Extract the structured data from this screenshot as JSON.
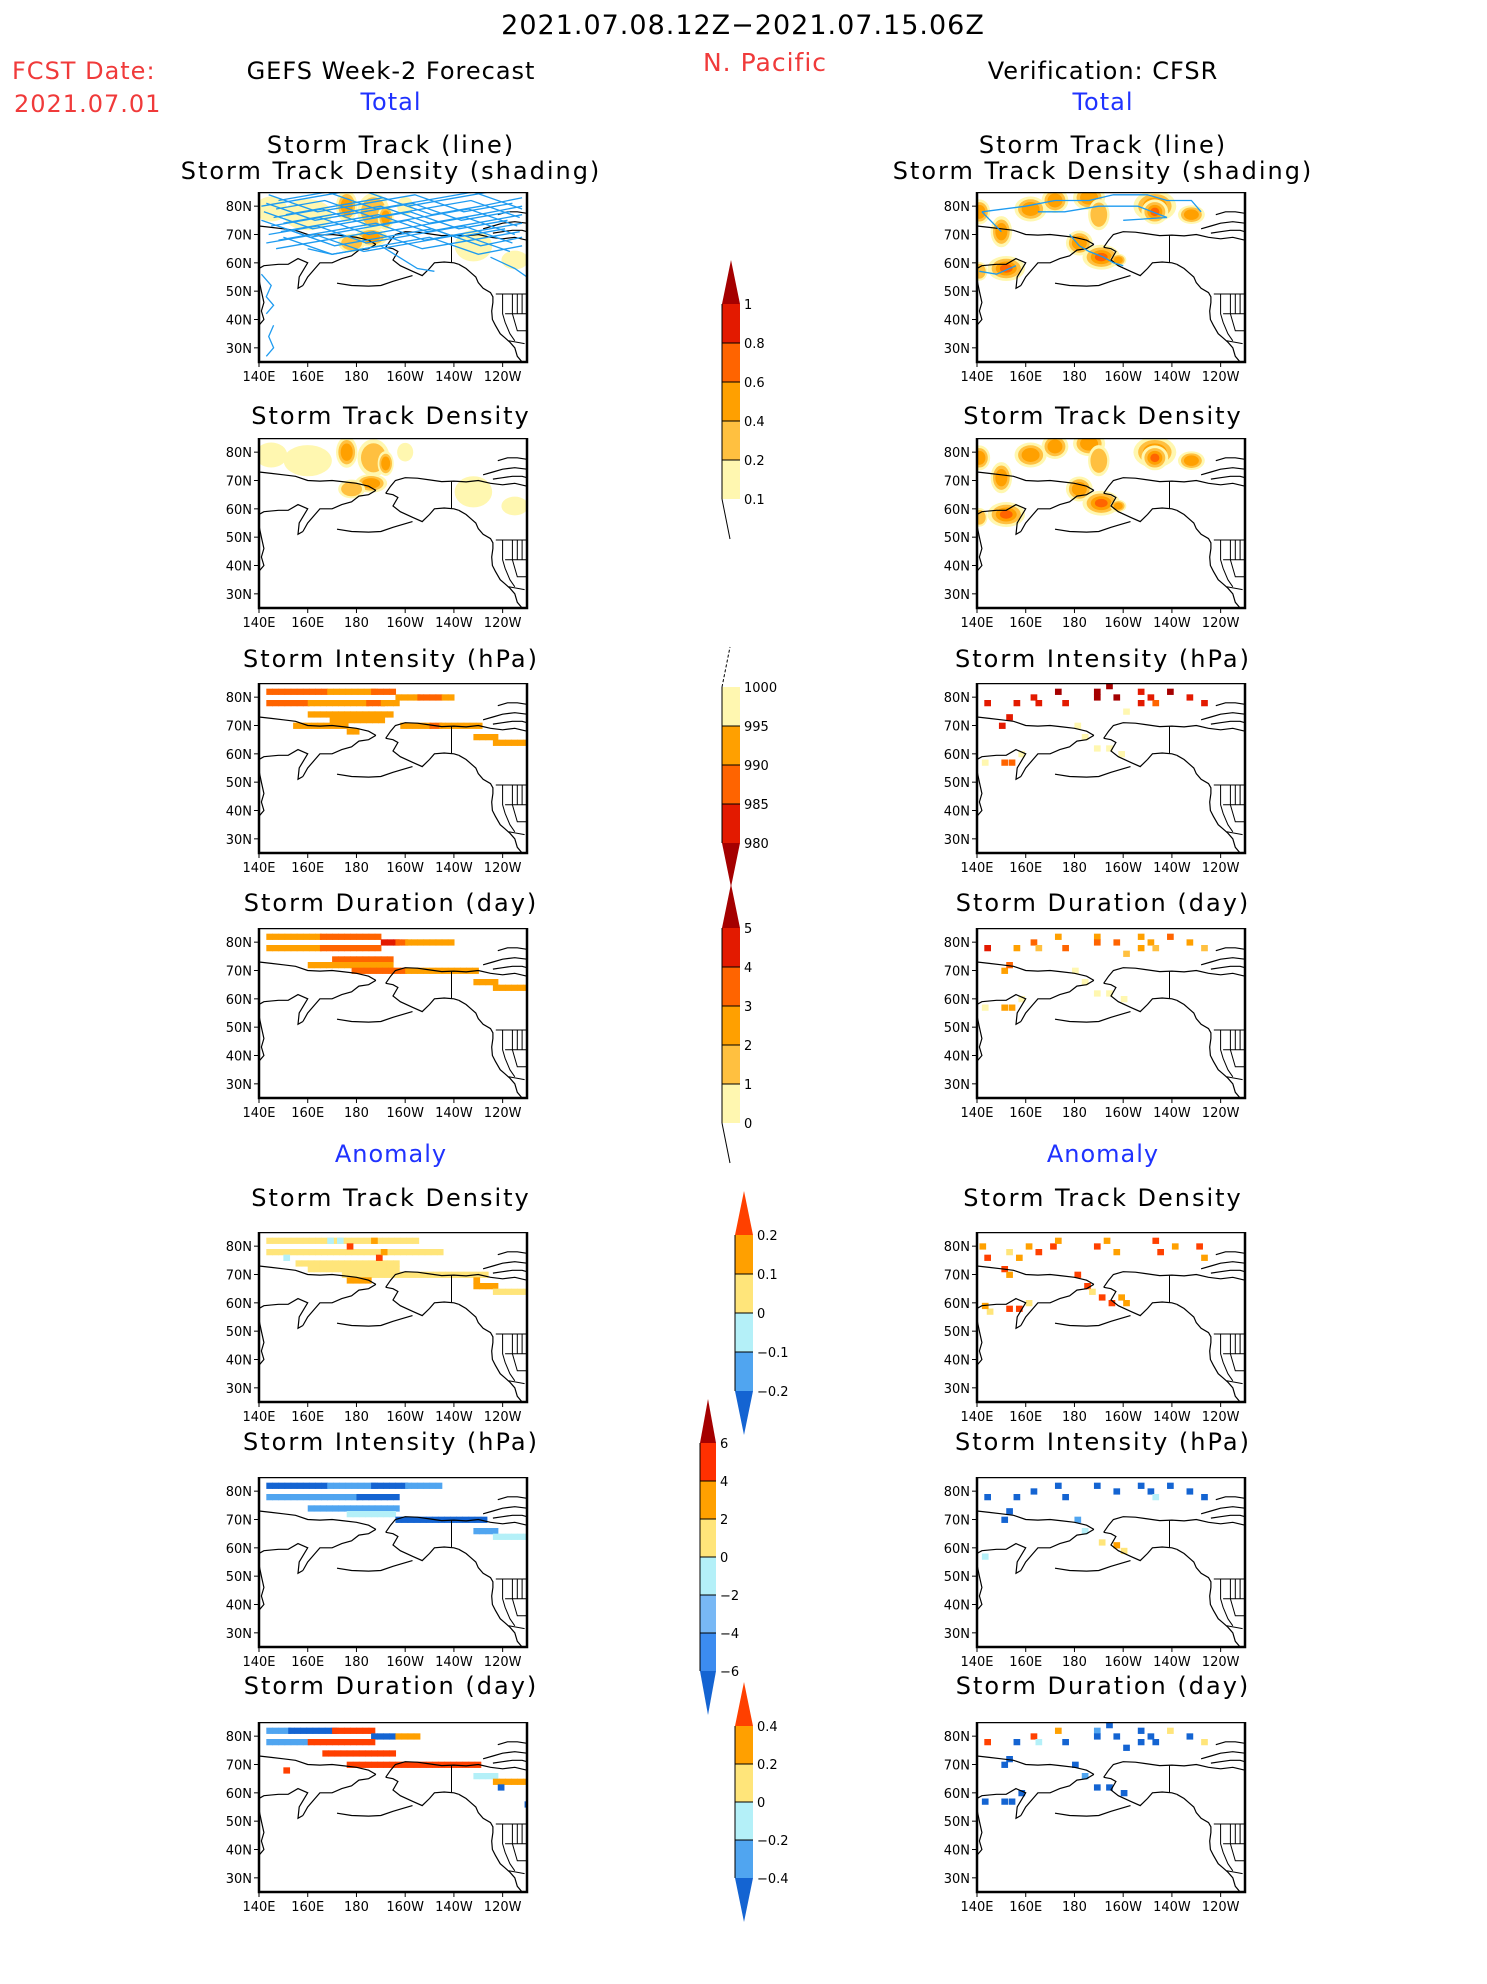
{
  "header": {
    "date_range": "2021.07.08.12Z−2021.07.15.06Z",
    "region": "N. Pacific",
    "fcst_label": "FCST Date:",
    "fcst_date": "2021.07.01",
    "left_title": "GEFS Week-2 Forecast",
    "right_title": "Verification: CFSR",
    "total_label": "Total",
    "anomaly_label": "Anomaly"
  },
  "colors": {
    "title_red": "#f03a3a",
    "section_blue": "#1f32ff",
    "track_line": "#1e9bf0"
  },
  "axes": {
    "lon_ticks": [
      "140E",
      "160E",
      "180",
      "160W",
      "140W",
      "120W"
    ],
    "lat_ticks": [
      "80N",
      "70N",
      "60N",
      "50N",
      "40N",
      "30N"
    ]
  },
  "panels": {
    "titles": {
      "track_line": "Storm Track (line)",
      "track_shading": "Storm Track Density (shading)",
      "density": "Storm Track Density",
      "intensity": "Storm Intensity (hPa)",
      "duration": "Storm Duration (day)"
    }
  },
  "colorbars": {
    "density_total": {
      "labels": [
        "1",
        "0.8",
        "0.6",
        "0.4",
        "0.2",
        "0.1"
      ],
      "colors": [
        "#a50000",
        "#e31a00",
        "#ff6400",
        "#ffa000",
        "#ffc040",
        "#fff7b0"
      ],
      "extend": "max"
    },
    "intensity_total": {
      "labels": [
        "1000",
        "995",
        "990",
        "985",
        "980"
      ],
      "colors": [
        "#fff7b0",
        "#ffa000",
        "#ff6400",
        "#e31a00",
        "#a50000"
      ],
      "extend": "min"
    },
    "duration_total": {
      "labels": [
        "5",
        "4",
        "3",
        "2",
        "1",
        "0"
      ],
      "colors": [
        "#a50000",
        "#e31a00",
        "#ff6400",
        "#ffa000",
        "#ffc040",
        "#fff7b0"
      ],
      "extend": "max"
    },
    "density_anom": {
      "labels": [
        "0.2",
        "0.1",
        "0",
        "−0.1",
        "−0.2"
      ],
      "colors": [
        "#ff4000",
        "#ffa000",
        "#ffe57a",
        "#b4f0f8",
        "#50a5f0",
        "#1464d2"
      ],
      "extend": "both"
    },
    "intensity_anom": {
      "labels": [
        "6",
        "4",
        "2",
        "0",
        "−2",
        "−4",
        "−6"
      ],
      "colors": [
        "#a50000",
        "#ff3000",
        "#ffa000",
        "#ffe57a",
        "#b4f0f8",
        "#78b8f5",
        "#3c8cf0",
        "#1464d2"
      ],
      "extend": "both"
    },
    "duration_anom": {
      "labels": [
        "0.4",
        "0.2",
        "0",
        "−0.2",
        "−0.4"
      ],
      "colors": [
        "#ff4000",
        "#ffa000",
        "#ffe57a",
        "#b4f0f8",
        "#50a5f0",
        "#1464d2"
      ],
      "extend": "both"
    }
  },
  "chart_data": {
    "type": "heatmap",
    "title": "2021.07.08.12Z−2021.07.15.06Z N. Pacific",
    "xlabel": "",
    "ylabel": "",
    "xlim": [
      "140E",
      "110W"
    ],
    "ylim": [
      "25N",
      "85N"
    ],
    "grid": false,
    "panels": [
      {
        "column": "GEFS Week-2 Forecast",
        "section": "Total",
        "title": "Storm Track (line) / Storm Track Density (shading)",
        "colorbar": "density_total"
      },
      {
        "column": "Verification: CFSR",
        "section": "Total",
        "title": "Storm Track (line) / Storm Track Density (shading)",
        "colorbar": "density_total"
      },
      {
        "column": "GEFS Week-2 Forecast",
        "section": "Total",
        "title": "Storm Track Density",
        "colorbar": "density_total"
      },
      {
        "column": "Verification: CFSR",
        "section": "Total",
        "title": "Storm Track Density",
        "colorbar": "density_total"
      },
      {
        "column": "GEFS Week-2 Forecast",
        "section": "Total",
        "title": "Storm Intensity (hPa)",
        "colorbar": "intensity_total"
      },
      {
        "column": "Verification: CFSR",
        "section": "Total",
        "title": "Storm Intensity (hPa)",
        "colorbar": "intensity_total"
      },
      {
        "column": "GEFS Week-2 Forecast",
        "section": "Total",
        "title": "Storm Duration (day)",
        "colorbar": "duration_total"
      },
      {
        "column": "Verification: CFSR",
        "section": "Total",
        "title": "Storm Duration (day)",
        "colorbar": "duration_total"
      },
      {
        "column": "GEFS Week-2 Forecast",
        "section": "Anomaly",
        "title": "Storm Track Density",
        "colorbar": "density_anom"
      },
      {
        "column": "Verification: CFSR",
        "section": "Anomaly",
        "title": "Storm Track Density",
        "colorbar": "density_anom"
      },
      {
        "column": "GEFS Week-2 Forecast",
        "section": "Anomaly",
        "title": "Storm Intensity (hPa)",
        "colorbar": "intensity_anom"
      },
      {
        "column": "Verification: CFSR",
        "section": "Anomaly",
        "title": "Storm Intensity (hPa)",
        "colorbar": "intensity_anom"
      },
      {
        "column": "GEFS Week-2 Forecast",
        "section": "Anomaly",
        "title": "Storm Duration (day)",
        "colorbar": "duration_anom"
      },
      {
        "column": "Verification: CFSR",
        "section": "Anomaly",
        "title": "Storm Duration (day)",
        "colorbar": "duration_anom"
      }
    ]
  }
}
